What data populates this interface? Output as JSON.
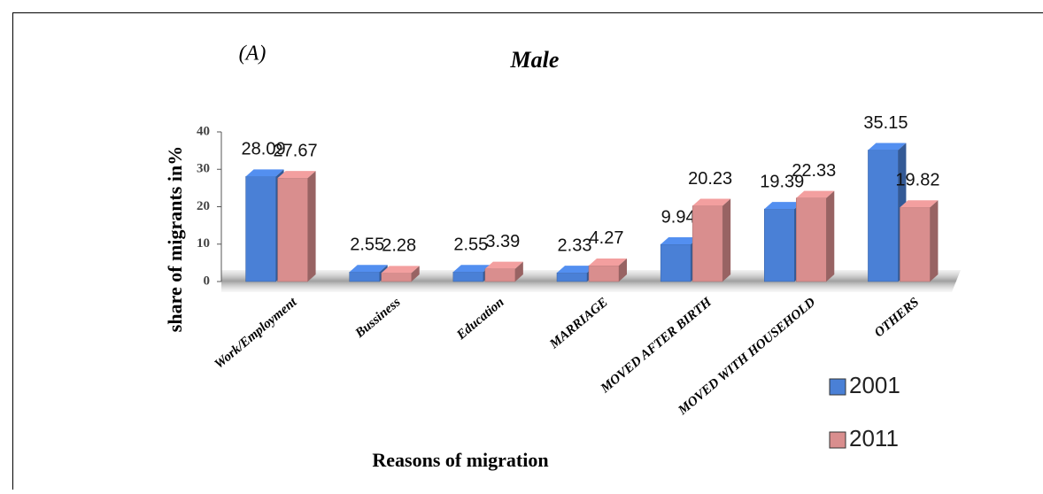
{
  "chart_data": {
    "type": "bar3d",
    "title": "Male",
    "annotation": "(A)",
    "y_label": "share of migrants in%",
    "x_label": "Reasons of migration",
    "categories": [
      "Work/Employment",
      "Bussiness",
      "Education",
      "MARRIAGE",
      "MOVED AFTER BIRTH",
      "MOVED WITH HOUSEHOLD",
      "OTHERS"
    ],
    "series": [
      {
        "name": "2001",
        "color": "#4a80d6",
        "values": [
          28.09,
          2.55,
          2.55,
          2.33,
          9.94,
          19.39,
          35.15
        ]
      },
      {
        "name": "2011",
        "color": "#d98e8e",
        "values": [
          27.67,
          2.28,
          3.39,
          4.27,
          20.23,
          22.33,
          19.82
        ]
      }
    ],
    "ylim": [
      0,
      40
    ],
    "yticks": [
      0,
      10,
      20,
      30,
      40
    ],
    "legend": "bottom-right"
  }
}
